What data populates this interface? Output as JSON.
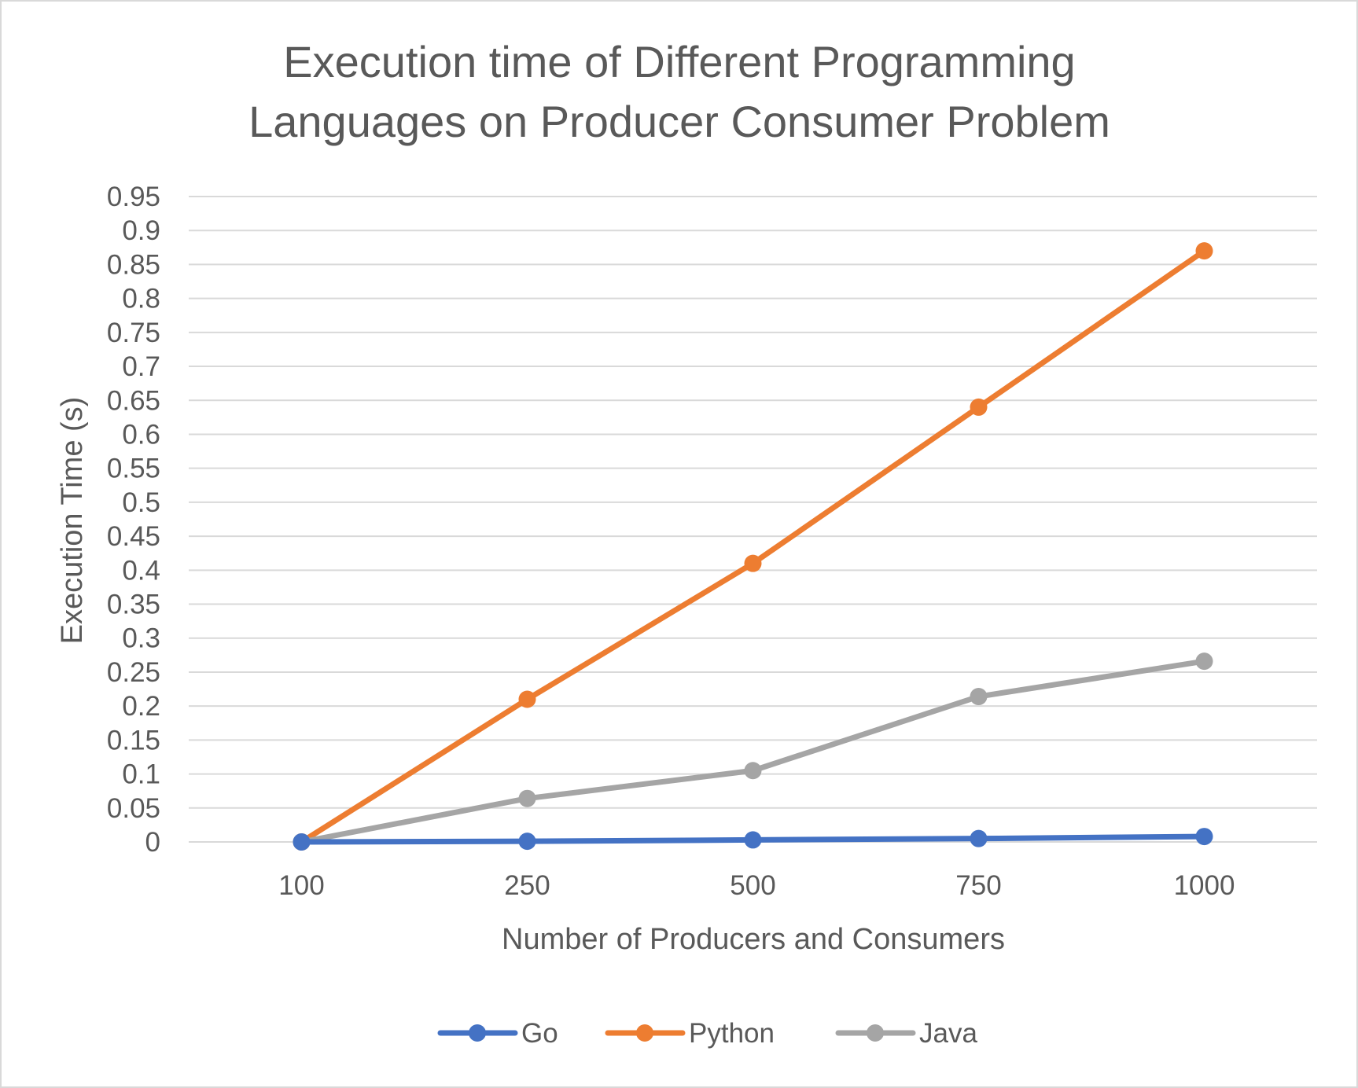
{
  "chart_data": {
    "type": "line",
    "title_lines": [
      "Execution time of Different Programming",
      "Languages on Producer Consumer Problem"
    ],
    "xlabel": "Number of Producers and Consumers",
    "ylabel": "Execution Time (s)",
    "categories": [
      "100",
      "250",
      "500",
      "750",
      "1000"
    ],
    "ylim": [
      0,
      0.95
    ],
    "ytick_step": 0.05,
    "yticks": [
      "0",
      "0.05",
      "0.1",
      "0.15",
      "0.2",
      "0.25",
      "0.3",
      "0.35",
      "0.4",
      "0.45",
      "0.5",
      "0.55",
      "0.6",
      "0.65",
      "0.7",
      "0.75",
      "0.8",
      "0.85",
      "0.9",
      "0.95"
    ],
    "grid": true,
    "legend_position": "bottom",
    "series": [
      {
        "name": "Go",
        "color": "#4472c4",
        "values": [
          0.0,
          0.001,
          0.003,
          0.005,
          0.008
        ]
      },
      {
        "name": "Python",
        "color": "#ed7d31",
        "values": [
          0.0,
          0.21,
          0.41,
          0.64,
          0.87
        ]
      },
      {
        "name": "Java",
        "color": "#a5a5a5",
        "values": [
          0.0,
          0.064,
          0.105,
          0.214,
          0.266
        ]
      }
    ]
  }
}
